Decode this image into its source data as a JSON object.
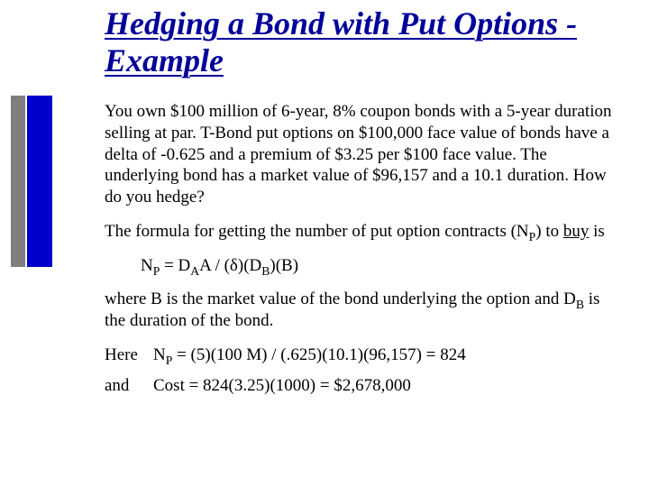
{
  "colors": {
    "title": "#000099",
    "stripe_gray": "#7f7f7f",
    "stripe_blue": "#0000cc",
    "body_text": "#000000",
    "background": "#ffffff"
  },
  "title": "Hedging a Bond with Put Options - Example",
  "para1": "You own $100 million of 6-year, 8% coupon bonds with a 5-year duration selling at par. T-Bond put options on $100,000 face value of bonds have a delta of -0.625 and a premium of $3.25 per $100 face value. The underlying bond has a market value of $96,157 and a 10.1 duration. How do you hedge?",
  "para2_a": "The formula for getting the number of put option contracts (N",
  "para2_sub": "P",
  "para2_b": ") to ",
  "para2_c": "buy",
  "para2_d": " is",
  "formula": {
    "a": "N",
    "sub1": "P",
    "b": " = D",
    "sub2": "A",
    "c": "A / (δ)(D",
    "sub3": "B",
    "d": ")(B)"
  },
  "para3_a": "where B is the market value of the bond underlying the option and D",
  "para3_sub": "B",
  "para3_b": " is the duration of the bond.",
  "here_label": "Here",
  "here_a": "N",
  "here_sub": "P",
  "here_b": " = (5)(100 M) / (.625)(10.1)(96,157) = 824",
  "and_label": "and",
  "and_val": "Cost = 824(3.25)(1000) = $2,678,000"
}
